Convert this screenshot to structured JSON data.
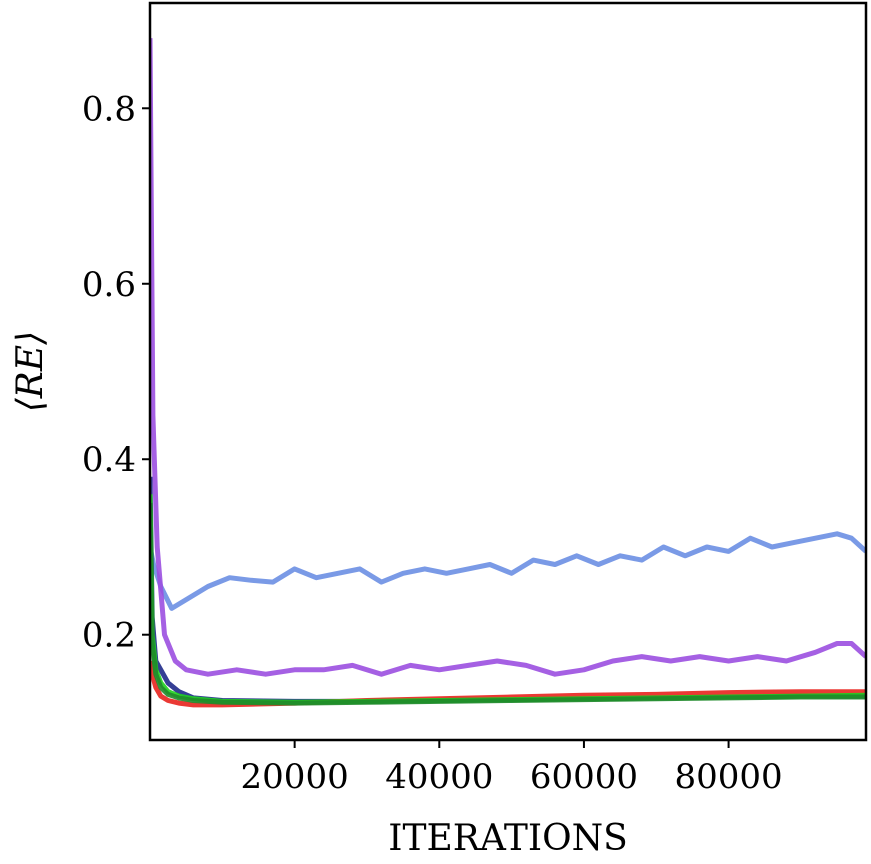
{
  "chart_data": {
    "type": "line",
    "title": "",
    "xlabel": "ITERATIONS",
    "ylabel": "⟨RE⟩",
    "xlim": [
      0,
      99000
    ],
    "ylim": [
      0.08,
      0.92
    ],
    "xticks": [
      20000,
      40000,
      60000,
      80000
    ],
    "xtick_labels": [
      "20000",
      "40000",
      "60000",
      "80000"
    ],
    "yticks": [
      0.2,
      0.4,
      0.6,
      0.8
    ],
    "ytick_labels": [
      "0.2",
      "0.4",
      "0.6",
      "0.8"
    ],
    "grid": false,
    "legend": "none",
    "series": [
      {
        "color": "#6b8fe3",
        "x": [
          0,
          500,
          1500,
          3000,
          5000,
          8000,
          11000,
          14000,
          17000,
          20000,
          23000,
          26000,
          29000,
          32000,
          35000,
          38000,
          41000,
          44000,
          47000,
          50000,
          53000,
          56000,
          59000,
          62000,
          65000,
          68000,
          71000,
          74000,
          77000,
          80000,
          83000,
          86000,
          89000,
          92000,
          95000,
          97000,
          99000
        ],
        "y": [
          0.3,
          0.28,
          0.255,
          0.23,
          0.24,
          0.255,
          0.265,
          0.262,
          0.26,
          0.275,
          0.265,
          0.27,
          0.275,
          0.26,
          0.27,
          0.275,
          0.27,
          0.275,
          0.28,
          0.27,
          0.285,
          0.28,
          0.29,
          0.28,
          0.29,
          0.285,
          0.3,
          0.29,
          0.3,
          0.295,
          0.31,
          0.3,
          0.305,
          0.31,
          0.315,
          0.31,
          0.295
        ]
      },
      {
        "color": "#9b4fe0",
        "x": [
          0,
          400,
          1000,
          2000,
          3500,
          5000,
          8000,
          12000,
          16000,
          20000,
          24000,
          28000,
          32000,
          36000,
          40000,
          44000,
          48000,
          52000,
          56000,
          60000,
          64000,
          68000,
          72000,
          76000,
          80000,
          84000,
          88000,
          92000,
          95000,
          97000,
          99000
        ],
        "y": [
          0.88,
          0.45,
          0.3,
          0.2,
          0.17,
          0.16,
          0.155,
          0.16,
          0.155,
          0.16,
          0.16,
          0.165,
          0.155,
          0.165,
          0.16,
          0.165,
          0.17,
          0.165,
          0.155,
          0.16,
          0.17,
          0.175,
          0.17,
          0.175,
          0.17,
          0.175,
          0.17,
          0.18,
          0.19,
          0.19,
          0.175
        ]
      },
      {
        "color": "#1f2a8a",
        "x": [
          0,
          300,
          800,
          1500,
          2500,
          4000,
          6000,
          10000,
          20000,
          30000,
          40000,
          50000,
          60000,
          70000,
          80000,
          90000,
          99000
        ],
        "y": [
          0.38,
          0.22,
          0.17,
          0.16,
          0.145,
          0.135,
          0.128,
          0.125,
          0.124,
          0.124,
          0.125,
          0.126,
          0.127,
          0.128,
          0.129,
          0.13,
          0.13
        ]
      },
      {
        "color": "#e8231e",
        "x": [
          0,
          300,
          800,
          1500,
          2500,
          4000,
          6000,
          10000,
          15000,
          20000,
          30000,
          40000,
          50000,
          60000,
          70000,
          80000,
          90000,
          99000
        ],
        "y": [
          0.17,
          0.155,
          0.14,
          0.13,
          0.125,
          0.122,
          0.12,
          0.12,
          0.121,
          0.122,
          0.125,
          0.127,
          0.129,
          0.131,
          0.132,
          0.134,
          0.135,
          0.135
        ]
      },
      {
        "color": "#1fd01f",
        "x": [
          0,
          300,
          800,
          1500,
          2500,
          4000,
          6000,
          10000,
          20000,
          30000,
          40000,
          50000,
          60000,
          70000,
          80000,
          90000,
          99000
        ],
        "y": [
          0.36,
          0.2,
          0.16,
          0.145,
          0.135,
          0.13,
          0.127,
          0.124,
          0.123,
          0.124,
          0.125,
          0.126,
          0.127,
          0.128,
          0.129,
          0.13,
          0.131
        ]
      },
      {
        "color": "#1f8a2a",
        "x": [
          0,
          300,
          800,
          1500,
          2500,
          4000,
          6000,
          10000,
          20000,
          30000,
          40000,
          50000,
          60000,
          70000,
          80000,
          90000,
          99000
        ],
        "y": [
          0.35,
          0.19,
          0.155,
          0.14,
          0.132,
          0.128,
          0.125,
          0.123,
          0.122,
          0.123,
          0.124,
          0.125,
          0.126,
          0.127,
          0.128,
          0.129,
          0.129
        ]
      }
    ]
  }
}
